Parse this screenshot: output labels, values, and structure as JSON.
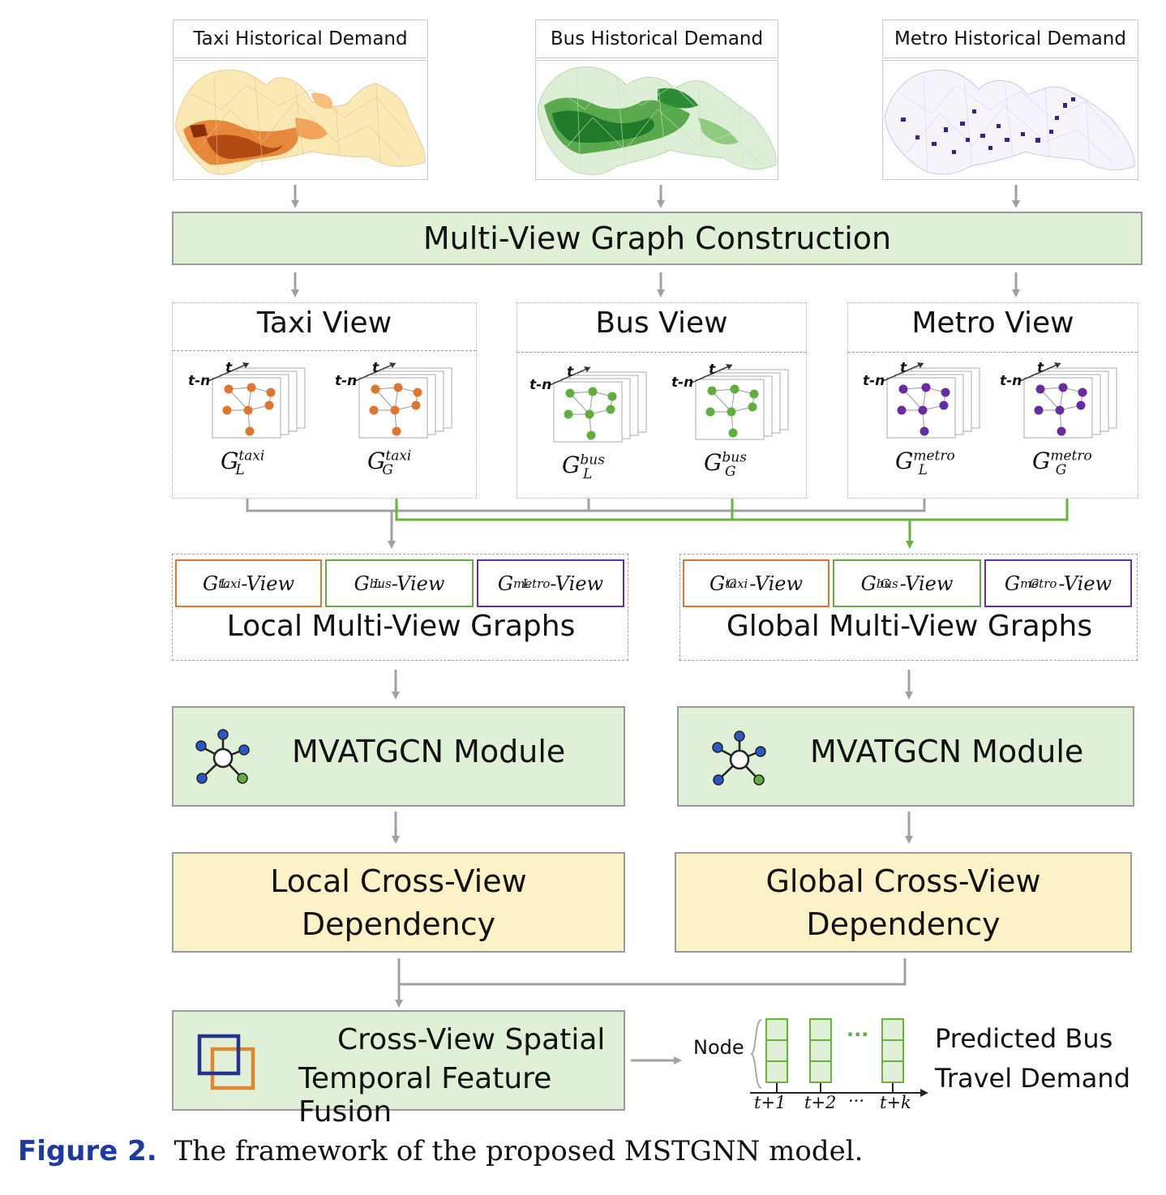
{
  "maps": [
    {
      "title": "Taxi Historical Demand"
    },
    {
      "title": "Bus Historical Demand"
    },
    {
      "title": "Metro Historical Demand"
    }
  ],
  "construction": "Multi-View Graph Construction",
  "views": [
    {
      "title": "Taxi View",
      "local_sup": "taxi",
      "local_sub": "L",
      "global_sup": "taxi",
      "global_sub": "G"
    },
    {
      "title": "Bus View",
      "local_sup": "bus",
      "local_sub": "L",
      "global_sup": "bus",
      "global_sub": "G"
    },
    {
      "title": "Metro View",
      "local_sup": "metro",
      "local_sub": "L",
      "global_sup": "metro",
      "global_sub": "G"
    }
  ],
  "time_labels": {
    "t": "t",
    "tn": "t-n"
  },
  "graph_letter": "G",
  "view_suffix": "-View",
  "local_group": {
    "title": "Local Multi-View Graphs",
    "items": [
      {
        "sup": "taxi",
        "sub": "L"
      },
      {
        "sup": "bus",
        "sub": "L"
      },
      {
        "sup": "metro",
        "sub": "L"
      }
    ]
  },
  "global_group": {
    "title": "Global Multi-View Graphs",
    "items": [
      {
        "sup": "taxi",
        "sub": "G"
      },
      {
        "sup": "bus",
        "sub": "G"
      },
      {
        "sup": "metro",
        "sub": "G"
      }
    ]
  },
  "module_left": "MVATGCN Module",
  "module_right": "MVATGCN Module",
  "cross_left": {
    "line1": "Local Cross-View",
    "line2": "Dependency"
  },
  "cross_right": {
    "line1": "Global Cross-View",
    "line2": "Dependency"
  },
  "fusion": {
    "line1": "Cross-View Spatial",
    "line2": "Temporal Feature Fusion"
  },
  "output": {
    "node_label": "Node",
    "dots": "···",
    "ticks": [
      "t+1",
      "t+2",
      "···",
      "t+k"
    ],
    "label_line1": "Predicted Bus",
    "label_line2": "Travel Demand"
  },
  "caption": {
    "label": "Figure 2.",
    "text": "The framework of the proposed MSTGNN model."
  },
  "colors": {
    "taxi": "#e0762e",
    "bus": "#5fae3e",
    "metro": "#6a2aa5",
    "green_fill": "#dff0d6",
    "yellow_fill": "#fdf2c7",
    "arrow_gray": "#a0a0a0",
    "arrow_green": "#6bb23a",
    "caption_blue": "#1d3aa0"
  }
}
